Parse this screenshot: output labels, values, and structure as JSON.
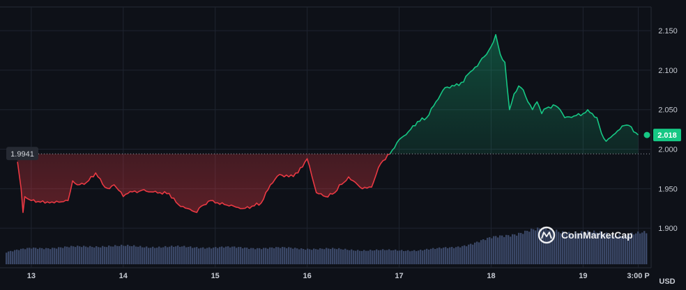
{
  "chart_data": {
    "type": "area",
    "currency_label": "USD",
    "baseline": 1.9941,
    "baseline_label": "1.9941",
    "last_value": 2.018,
    "last_label": "2.018",
    "ylim": [
      1.85,
      2.18
    ],
    "y_ticks": [
      {
        "value": 1.9,
        "label": "1.900"
      },
      {
        "value": 1.95,
        "label": "1.950"
      },
      {
        "value": 2.0,
        "label": "2.000"
      },
      {
        "value": 2.05,
        "label": "2.050"
      },
      {
        "value": 2.1,
        "label": "2.100"
      },
      {
        "value": 2.15,
        "label": "2.150"
      }
    ],
    "x_ticks": [
      {
        "t": 0.0,
        "label": "13"
      },
      {
        "t": 1.0,
        "label": "14"
      },
      {
        "t": 2.0,
        "label": "15"
      },
      {
        "t": 3.0,
        "label": "16"
      },
      {
        "t": 4.0,
        "label": "17"
      },
      {
        "t": 5.0,
        "label": "18"
      },
      {
        "t": 6.0,
        "label": "19"
      },
      {
        "t": 6.6,
        "label": "3:00 P"
      }
    ],
    "xlim": [
      -0.34,
      6.74
    ],
    "series": [
      {
        "t": [
          -0.15,
          -0.11,
          -0.09,
          -0.07,
          -0.05,
          0.0,
          0.1,
          0.2,
          0.3,
          0.4,
          0.45,
          0.5,
          0.55,
          0.6,
          0.7,
          0.8,
          0.85,
          0.9,
          0.95,
          1.0,
          1.05,
          1.1,
          1.15,
          1.2,
          1.3,
          1.4,
          1.5,
          1.6,
          1.7,
          1.8,
          1.85,
          1.9,
          1.95,
          2.0,
          2.1,
          2.2,
          2.3,
          2.4,
          2.5,
          2.6,
          2.7,
          2.8,
          2.9,
          3.0,
          3.1,
          3.2,
          3.3,
          3.35,
          3.4,
          3.45,
          3.5,
          3.6,
          3.7,
          3.72,
          3.75,
          3.8,
          3.9,
          4.0,
          4.1,
          4.2,
          4.3,
          4.4,
          4.5,
          4.6,
          4.7,
          4.75,
          4.8,
          4.85,
          4.9,
          4.95,
          5.0,
          5.05,
          5.1,
          5.15,
          5.2,
          5.25,
          5.3,
          5.35,
          5.4,
          5.45,
          5.5,
          5.55,
          5.6,
          5.7,
          5.75,
          5.8,
          5.9,
          6.0,
          6.05,
          6.1,
          6.15,
          6.2,
          6.25,
          6.3,
          6.35,
          6.4,
          6.45,
          6.5,
          6.55,
          6.6
        ],
        "values": [
          1.984,
          1.95,
          1.92,
          1.94,
          1.938,
          1.935,
          1.933,
          1.932,
          1.933,
          1.935,
          1.96,
          1.955,
          1.957,
          1.958,
          1.97,
          1.952,
          1.95,
          1.955,
          1.948,
          1.94,
          1.944,
          1.946,
          1.945,
          1.948,
          1.946,
          1.945,
          1.944,
          1.93,
          1.925,
          1.92,
          1.928,
          1.93,
          1.935,
          1.932,
          1.93,
          1.928,
          1.925,
          1.928,
          1.932,
          1.955,
          1.968,
          1.965,
          1.97,
          1.988,
          1.945,
          1.94,
          1.945,
          1.955,
          1.958,
          1.965,
          1.96,
          1.95,
          1.952,
          1.958,
          1.968,
          1.982,
          1.994,
          2.012,
          2.022,
          2.035,
          2.04,
          2.06,
          2.078,
          2.08,
          2.085,
          2.095,
          2.1,
          2.105,
          2.115,
          2.12,
          2.13,
          2.145,
          2.12,
          2.11,
          2.05,
          2.07,
          2.08,
          2.075,
          2.06,
          2.05,
          2.06,
          2.045,
          2.052,
          2.055,
          2.05,
          2.04,
          2.042,
          2.045,
          2.05,
          2.045,
          2.04,
          2.02,
          2.01,
          2.015,
          2.02,
          2.025,
          2.03,
          2.03,
          2.022,
          2.018
        ]
      }
    ],
    "volume": {
      "t": [
        -0.34,
        0.0,
        0.5,
        0.8,
        1.2,
        1.6,
        2.0,
        2.4,
        2.8,
        3.2,
        3.6,
        3.9,
        4.2,
        4.4,
        4.6,
        4.8,
        5.0,
        5.2,
        5.4,
        5.6,
        5.8,
        6.0,
        6.2,
        6.4,
        6.6
      ],
      "values": [
        0.3,
        0.42,
        0.45,
        0.48,
        0.46,
        0.45,
        0.44,
        0.43,
        0.42,
        0.4,
        0.37,
        0.36,
        0.37,
        0.4,
        0.45,
        0.55,
        0.68,
        0.78,
        0.88,
        0.9,
        0.85,
        0.82,
        0.8,
        0.78,
        0.8
      ]
    }
  },
  "watermark": {
    "text": "CoinMarketCap"
  },
  "colors": {
    "background": "#0e1118",
    "up": "#16c784",
    "down": "#ea3943",
    "grid": "#1f2430",
    "volume": "#3a4766",
    "baseline_label_bg": "#262a33"
  }
}
